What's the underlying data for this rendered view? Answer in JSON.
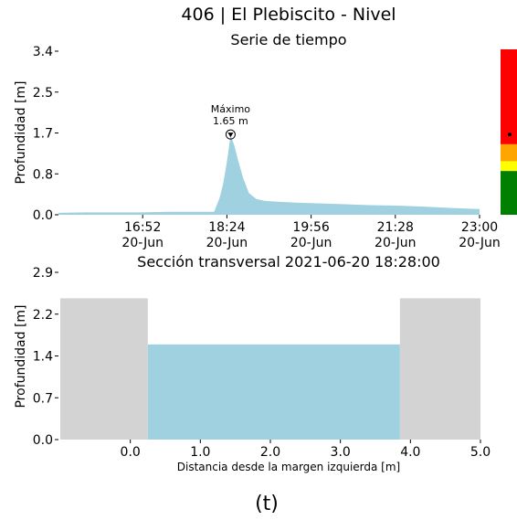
{
  "figure": {
    "title": "406 | El Plebiscito - Nivel",
    "caption": "(t)"
  },
  "chart_data": [
    {
      "type": "area",
      "title": "Serie de tiempo",
      "xlabel": "",
      "ylabel": "Profundidad [m]",
      "ylim": [
        0,
        3.4
      ],
      "yticks": [
        "0.0",
        "0.8",
        "1.7",
        "2.5",
        "3.4"
      ],
      "xlim": [
        "2021-06-20 15:20",
        "2021-06-20 23:00"
      ],
      "xticks": [
        {
          "time": "16:52",
          "date": "20-Jun"
        },
        {
          "time": "18:24",
          "date": "20-Jun"
        },
        {
          "time": "19:56",
          "date": "20-Jun"
        },
        {
          "time": "21:28",
          "date": "20-Jun"
        },
        {
          "time": "23:00",
          "date": "20-Jun"
        }
      ],
      "series": [
        {
          "color": "#9fd1e0",
          "x": [
            "2021-06-20 15:20",
            "2021-06-20 15:50",
            "2021-06-20 16:20",
            "2021-06-20 16:50",
            "2021-06-20 17:20",
            "2021-06-20 17:50",
            "2021-06-20 18:10",
            "2021-06-20 18:16",
            "2021-06-20 18:20",
            "2021-06-20 18:24",
            "2021-06-20 18:28",
            "2021-06-20 18:32",
            "2021-06-20 18:36",
            "2021-06-20 18:42",
            "2021-06-20 18:48",
            "2021-06-20 18:56",
            "2021-06-20 19:05",
            "2021-06-20 19:20",
            "2021-06-20 19:40",
            "2021-06-20 20:00",
            "2021-06-20 20:30",
            "2021-06-20 21:00",
            "2021-06-20 21:30",
            "2021-06-20 22:00",
            "2021-06-20 22:30",
            "2021-06-20 23:00"
          ],
          "y": [
            0.04,
            0.05,
            0.05,
            0.05,
            0.06,
            0.06,
            0.06,
            0.35,
            0.65,
            1.1,
            1.65,
            1.45,
            1.15,
            0.75,
            0.45,
            0.33,
            0.29,
            0.27,
            0.25,
            0.24,
            0.22,
            0.2,
            0.19,
            0.17,
            0.14,
            0.12
          ]
        }
      ],
      "annotation": {
        "label": "Máximo",
        "value_text": "1.65 m",
        "time": "2021-06-20 18:28",
        "value": 1.65
      }
    },
    {
      "type": "area",
      "title": "Sección transversal 2021-06-20 18:28:00",
      "xlabel": "Distancia desde la margen izquierda [m]",
      "ylabel": "Profundidad [m]",
      "ylim": [
        0,
        2.9
      ],
      "yticks": [
        "0.0",
        "0.7",
        "1.4",
        "2.2",
        "2.9"
      ],
      "xlim": [
        -1.0,
        5.0
      ],
      "xticks": [
        "0.0",
        "1.0",
        "2.0",
        "3.0",
        "4.0",
        "5.0"
      ],
      "ground_color": "#d3d3d3",
      "water_color": "#9fd1e0",
      "bank_height": 2.45,
      "left_bank": [
        -1.0,
        0.25
      ],
      "right_bank": [
        3.85,
        5.0
      ],
      "water_level": 1.65,
      "water_extent": [
        0.25,
        3.85
      ]
    }
  ],
  "alert_bar": {
    "max_depth": 3.4,
    "current_depth": 1.65,
    "levels": [
      {
        "from": 0,
        "to": 0.9,
        "color": "#008000"
      },
      {
        "from": 0.9,
        "to": 1.1,
        "color": "#ffff00"
      },
      {
        "from": 1.1,
        "to": 1.45,
        "color": "#ffa500"
      },
      {
        "from": 1.45,
        "to": 3.4,
        "color": "#ff0000"
      }
    ]
  }
}
